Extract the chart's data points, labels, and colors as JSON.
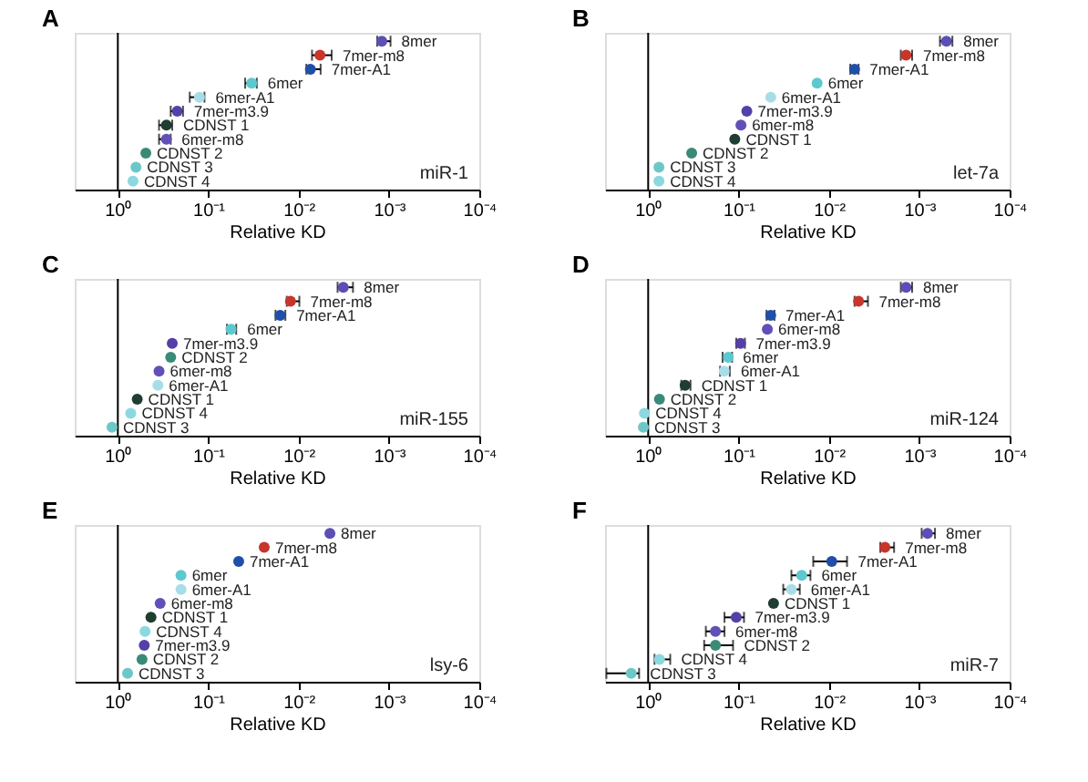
{
  "chart_data": [
    {
      "type": "scatter",
      "orientation": "horizontal",
      "title": "A",
      "xlabel": "Relative KD",
      "annotations": [
        "miR-1"
      ],
      "log": "x",
      "marker": "circle",
      "tick_labels": "x",
      "xlim": [
        3,
        0.0001
      ],
      "xticks": [
        {
          "value": 1,
          "label": "10⁰"
        },
        {
          "value": 0.1,
          "label": "10⁻¹"
        },
        {
          "value": 0.01,
          "label": "10⁻²"
        },
        {
          "value": 0.001,
          "label": "10⁻³"
        },
        {
          "value": 0.0001,
          "label": "10⁻⁴"
        }
      ],
      "ref_lines": [
        {
          "axis": "x",
          "value": 1,
          "color": "#000000"
        }
      ],
      "categories": [
        "8mer",
        "7mer-m8",
        "7mer-A1",
        "6mer",
        "6mer-A1",
        "7mer-m3.9",
        "CDNST 1",
        "6mer-m8",
        "CDNST 2",
        "CDNST 3",
        "CDNST 4"
      ],
      "values": [
        0.0012,
        0.0058,
        0.0074,
        0.033,
        0.125,
        0.22,
        0.29,
        0.29,
        0.49,
        0.63,
        0.68
      ],
      "errors": [
        [
          0.00096,
          0.00135
        ],
        [
          0.0043,
          0.0071
        ],
        [
          0.0057,
          0.0082
        ],
        [
          0.029,
          0.039
        ],
        [
          0.11,
          0.16
        ],
        [
          0.19,
          0.26
        ],
        [
          0.25,
          0.35
        ],
        [
          0.26,
          0.35
        ],
        null,
        null,
        null
      ],
      "colors": [
        "#5b4fb5",
        "#c8352b",
        "#1f4fa8",
        "#5cc8d0",
        "#a8dde8",
        "#5540a8",
        "#1f3d30",
        "#6050b8",
        "#3a8a78",
        "#6cc8c8",
        "#8cd8e0"
      ]
    },
    {
      "type": "scatter",
      "orientation": "horizontal",
      "title": "B",
      "xlabel": "Relative KD",
      "annotations": [
        "let-7a"
      ],
      "log": "x",
      "marker": "circle",
      "tick_labels": "x",
      "xlim": [
        3,
        0.0001
      ],
      "xticks": [
        {
          "value": 1,
          "label": "10⁰"
        },
        {
          "value": 0.1,
          "label": "10⁻¹"
        },
        {
          "value": 0.01,
          "label": "10⁻²"
        },
        {
          "value": 0.001,
          "label": "10⁻³"
        },
        {
          "value": 0.0001,
          "label": "10⁻⁴"
        }
      ],
      "ref_lines": [
        {
          "axis": "x",
          "value": 1,
          "color": "#000000"
        }
      ],
      "categories": [
        "8mer",
        "7mer-m8",
        "7mer-A1",
        "6mer",
        "6mer-A1",
        "7mer-m3.9",
        "6mer-m8",
        "CDNST 1",
        "CDNST 2",
        "CDNST 3",
        "CDNST 4"
      ],
      "values": [
        0.0005,
        0.0014,
        0.0052,
        0.0135,
        0.044,
        0.081,
        0.094,
        0.11,
        0.33,
        0.76,
        0.76
      ],
      "errors": [
        [
          0.00043,
          0.00059
        ],
        [
          0.0012,
          0.0016
        ],
        [
          0.0047,
          0.0058
        ],
        null,
        null,
        null,
        null,
        null,
        null,
        null,
        null
      ],
      "colors": [
        "#5b4fb5",
        "#c8352b",
        "#1f4fa8",
        "#5cc8d0",
        "#a8dde8",
        "#5540a8",
        "#6050b8",
        "#1f3d30",
        "#3a8a78",
        "#6cc8c8",
        "#8cd8e0"
      ]
    },
    {
      "type": "scatter",
      "orientation": "horizontal",
      "title": "C",
      "xlabel": "Relative KD",
      "annotations": [
        "miR-155"
      ],
      "log": "x",
      "marker": "circle",
      "tick_labels": "x",
      "xlim": [
        3,
        0.0001
      ],
      "xticks": [
        {
          "value": 1,
          "label": "10⁰"
        },
        {
          "value": 0.1,
          "label": "10⁻¹"
        },
        {
          "value": 0.01,
          "label": "10⁻²"
        },
        {
          "value": 0.001,
          "label": "10⁻³"
        },
        {
          "value": 0.0001,
          "label": "10⁻⁴"
        }
      ],
      "ref_lines": [
        {
          "axis": "x",
          "value": 1,
          "color": "#000000"
        }
      ],
      "categories": [
        "8mer",
        "7mer-m8",
        "7mer-A1",
        "6mer",
        "7mer-m3.9",
        "CDNST 2",
        "6mer-m8",
        "6mer-A1",
        "CDNST 1",
        "CDNST 4",
        "CDNST 3"
      ],
      "values": [
        0.0032,
        0.0123,
        0.016,
        0.056,
        0.25,
        0.26,
        0.35,
        0.36,
        0.61,
        0.72,
        1.16
      ],
      "errors": [
        [
          0.0025,
          0.0037
        ],
        [
          0.0098,
          0.0135
        ],
        [
          0.014,
          0.018
        ],
        [
          0.049,
          0.062
        ],
        null,
        null,
        null,
        null,
        null,
        null,
        null
      ],
      "colors": [
        "#5b4fb5",
        "#c8352b",
        "#1f4fa8",
        "#5cc8d0",
        "#5540a8",
        "#3a8a78",
        "#6050b8",
        "#a8dde8",
        "#1f3d30",
        "#8cd8e0",
        "#6cc8c8"
      ]
    },
    {
      "type": "scatter",
      "orientation": "horizontal",
      "title": "D",
      "xlabel": "Relative KD",
      "annotations": [
        "miR-124"
      ],
      "log": "x",
      "marker": "circle",
      "tick_labels": "x",
      "xlim": [
        3,
        0.0001
      ],
      "xticks": [
        {
          "value": 1,
          "label": "10⁰"
        },
        {
          "value": 0.1,
          "label": "10⁻¹"
        },
        {
          "value": 0.01,
          "label": "10⁻²"
        },
        {
          "value": 0.001,
          "label": "10⁻³"
        },
        {
          "value": 0.0001,
          "label": "10⁻⁴"
        }
      ],
      "ref_lines": [
        {
          "axis": "x",
          "value": 1,
          "color": "#000000"
        }
      ],
      "categories": [
        "8mer",
        "7mer-m8",
        "7mer-A1",
        "6mer-m8",
        "7mer-m3.9",
        "6mer",
        "6mer-A1",
        "CDNST 1",
        "CDNST 2",
        "CDNST 4",
        "CDNST 3"
      ],
      "values": [
        0.0014,
        0.0047,
        0.044,
        0.048,
        0.095,
        0.13,
        0.144,
        0.39,
        0.75,
        1.1,
        1.13
      ],
      "errors": [
        [
          0.0012,
          0.0016
        ],
        [
          0.0037,
          0.0052
        ],
        [
          0.04,
          0.049
        ],
        null,
        [
          0.085,
          0.106
        ],
        [
          0.118,
          0.15
        ],
        [
          0.125,
          0.16
        ],
        [
          0.34,
          0.43
        ],
        null,
        null,
        null
      ],
      "colors": [
        "#5b4fb5",
        "#c8352b",
        "#1f4fa8",
        "#6050b8",
        "#5540a8",
        "#5cc8d0",
        "#a8dde8",
        "#1f3d30",
        "#3a8a78",
        "#8cd8e0",
        "#6cc8c8"
      ]
    },
    {
      "type": "scatter",
      "orientation": "horizontal",
      "title": "E",
      "xlabel": "Relative KD",
      "annotations": [
        "lsy-6"
      ],
      "log": "x",
      "marker": "circle",
      "tick_labels": "x",
      "xlim": [
        3,
        0.0001
      ],
      "xticks": [
        {
          "value": 1,
          "label": "10⁰"
        },
        {
          "value": 0.1,
          "label": "10⁻¹"
        },
        {
          "value": 0.01,
          "label": "10⁻²"
        },
        {
          "value": 0.001,
          "label": "10⁻³"
        },
        {
          "value": 0.0001,
          "label": "10⁻⁴"
        }
      ],
      "ref_lines": [
        {
          "axis": "x",
          "value": 1,
          "color": "#000000"
        }
      ],
      "categories": [
        "8mer",
        "7mer-m8",
        "7mer-A1",
        "6mer",
        "6mer-A1",
        "6mer-m8",
        "CDNST 1",
        "CDNST 4",
        "7mer-m3.9",
        "CDNST 2",
        "CDNST 3"
      ],
      "values": [
        0.0045,
        0.024,
        0.046,
        0.2,
        0.2,
        0.34,
        0.43,
        0.5,
        0.51,
        0.54,
        0.78
      ],
      "colors": [
        "#5b4fb5",
        "#c8352b",
        "#1f4fa8",
        "#5cc8d0",
        "#a8dde8",
        "#6050b8",
        "#1f3d30",
        "#8cd8e0",
        "#5540a8",
        "#3a8a78",
        "#6cc8c8"
      ]
    },
    {
      "type": "scatter",
      "orientation": "horizontal",
      "title": "F",
      "xlabel": "Relative KD",
      "annotations": [
        "miR-7"
      ],
      "log": "x",
      "marker": "circle",
      "tick_labels": "x",
      "xlim": [
        3,
        0.0001
      ],
      "xticks": [
        {
          "value": 1,
          "label": "10⁰"
        },
        {
          "value": 0.1,
          "label": "10⁻¹"
        },
        {
          "value": 0.01,
          "label": "10⁻²"
        },
        {
          "value": 0.001,
          "label": "10⁻³"
        },
        {
          "value": 0.0001,
          "label": "10⁻⁴"
        }
      ],
      "ref_lines": [
        {
          "axis": "x",
          "value": 1,
          "color": "#000000"
        }
      ],
      "categories": [
        "8mer",
        "7mer-m8",
        "7mer-A1",
        "6mer",
        "6mer-A1",
        "CDNST 1",
        "7mer-m3.9",
        "6mer-m8",
        "CDNST 2",
        "CDNST 4",
        "CDNST 3"
      ],
      "values": [
        0.00081,
        0.0024,
        0.0093,
        0.02,
        0.026,
        0.041,
        0.106,
        0.18,
        0.18,
        0.75,
        1.54
      ],
      "errors": [
        [
          0.00067,
          0.00094
        ],
        [
          0.0019,
          0.0027
        ],
        [
          0.0063,
          0.0149
        ],
        [
          0.016,
          0.026
        ],
        [
          0.021,
          0.032
        ],
        null,
        [
          0.087,
          0.143
        ],
        [
          0.143,
          0.23
        ],
        [
          0.115,
          0.24
        ],
        [
          0.57,
          0.85
        ],
        [
          1.26,
          2.9
        ]
      ],
      "colors": [
        "#5b4fb5",
        "#c8352b",
        "#1f4fa8",
        "#5cc8d0",
        "#a8dde8",
        "#1f3d30",
        "#5540a8",
        "#6050b8",
        "#3a8a78",
        "#8cd8e0",
        "#6cc8c8"
      ]
    }
  ]
}
